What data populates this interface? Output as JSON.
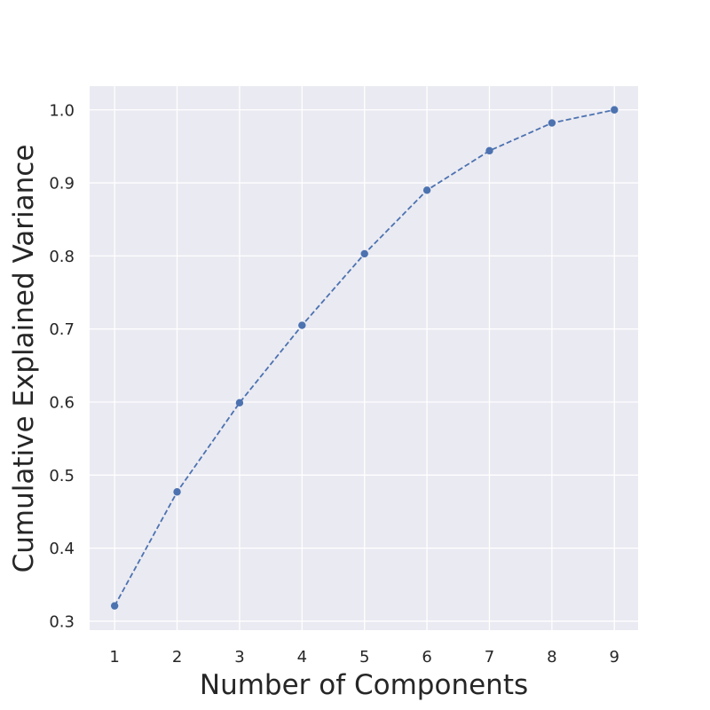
{
  "chart_data": {
    "type": "line",
    "title": "",
    "xlabel": "Number of Components",
    "ylabel": "Cumulative Explained Variance",
    "x": [
      1,
      2,
      3,
      4,
      5,
      6,
      7,
      8,
      9
    ],
    "series": [
      {
        "values": [
          0.321,
          0.477,
          0.599,
          0.705,
          0.803,
          0.89,
          0.944,
          0.982,
          1.0
        ],
        "color": "#4c72b0",
        "line_style": "dashed",
        "marker": "circle"
      }
    ],
    "xticks": [
      "1",
      "2",
      "3",
      "4",
      "5",
      "6",
      "7",
      "8",
      "9"
    ],
    "yticks": [
      "0.3",
      "0.4",
      "0.5",
      "0.6",
      "0.7",
      "0.8",
      "0.9",
      "1.0"
    ],
    "ytick_values": [
      0.3,
      0.4,
      0.5,
      0.6,
      0.7,
      0.8,
      0.9,
      1.0
    ],
    "xlim": [
      0.6,
      9.38
    ],
    "ylim": [
      0.2878,
      1.0325
    ],
    "grid": true,
    "legend": "none",
    "style": {
      "plot_background": "#eaeaf2",
      "grid_color": "#ffffff",
      "text_color": "#262626"
    }
  }
}
